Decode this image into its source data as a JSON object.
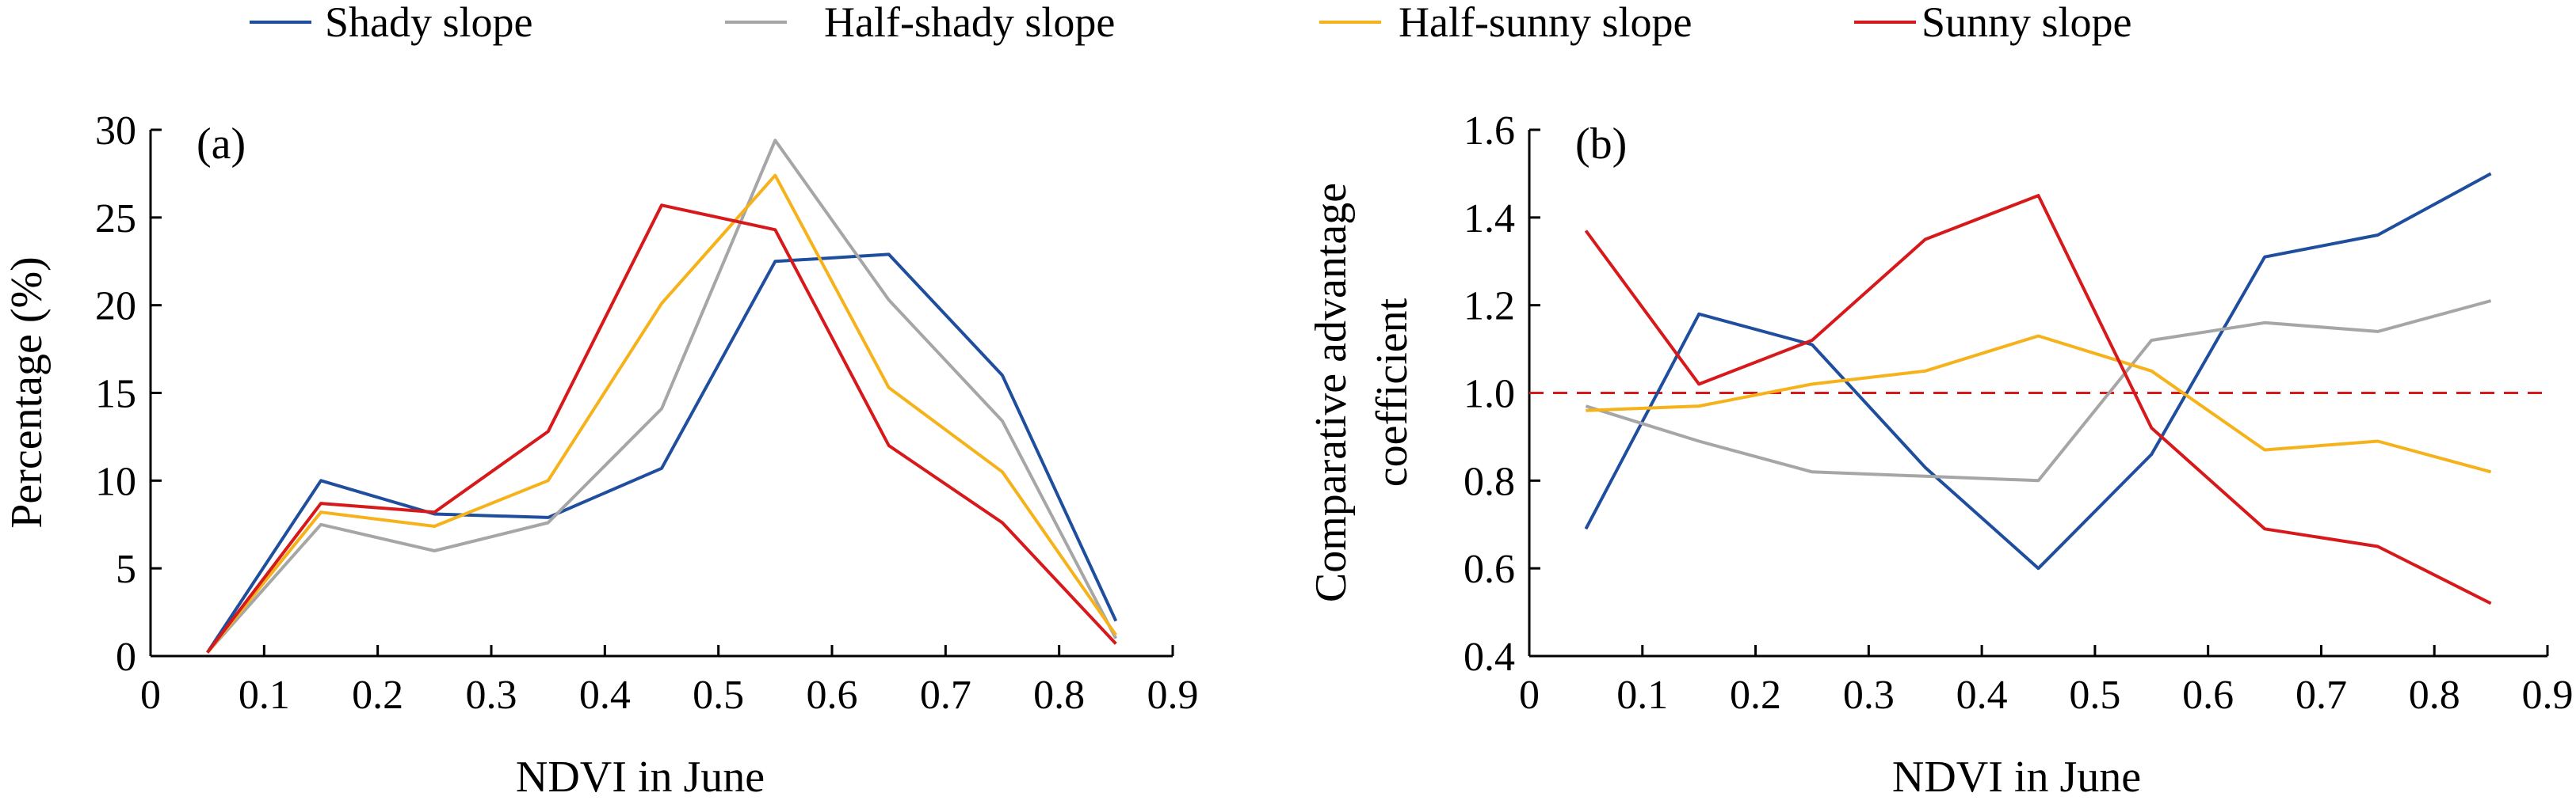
{
  "legend": [
    {
      "name": "Shady slope",
      "color": "#1f4e9e"
    },
    {
      "name": "Half-shady slope",
      "color": "#a6a6a6"
    },
    {
      "name": "Half-sunny slope",
      "color": "#f5b21a"
    },
    {
      "name": "Sunny slope",
      "color": "#d7191c"
    }
  ],
  "chart_data": [
    {
      "type": "line",
      "panel_label": "(a)",
      "xlabel": "NDVI in June",
      "ylabel": "Percentage (%)",
      "xlim": [
        0,
        0.9
      ],
      "ylim": [
        0,
        30
      ],
      "xticks": [
        "0",
        "0.1",
        "0.2",
        "0.3",
        "0.4",
        "0.5",
        "0.6",
        "0.7",
        "0.8",
        "0.9"
      ],
      "yticks": [
        "0",
        "5",
        "10",
        "15",
        "20",
        "25",
        "30"
      ],
      "x": [
        0.05,
        0.15,
        0.25,
        0.35,
        0.45,
        0.55,
        0.65,
        0.75,
        0.85
      ],
      "series": [
        {
          "name": "Shady slope",
          "color": "#1f4e9e",
          "values": [
            0.2,
            10.0,
            8.1,
            7.9,
            10.7,
            22.5,
            22.9,
            16.0,
            2.0
          ]
        },
        {
          "name": "Half-shady slope",
          "color": "#a6a6a6",
          "values": [
            0.2,
            7.5,
            6.0,
            7.6,
            14.1,
            29.4,
            20.3,
            13.4,
            1.0
          ]
        },
        {
          "name": "Half-sunny slope",
          "color": "#f5b21a",
          "values": [
            0.2,
            8.2,
            7.4,
            10.0,
            20.1,
            27.4,
            15.3,
            10.5,
            1.2
          ]
        },
        {
          "name": "Sunny slope",
          "color": "#d7191c",
          "values": [
            0.2,
            8.7,
            8.2,
            12.8,
            25.7,
            24.3,
            12.0,
            7.6,
            0.7
          ]
        }
      ],
      "grid": false
    },
    {
      "type": "line",
      "panel_label": "(b)",
      "xlabel": "NDVI in June",
      "ylabel_lines": [
        "Comparative advantage",
        "coefficient"
      ],
      "xlim": [
        0,
        0.9
      ],
      "ylim": [
        0.4,
        1.6
      ],
      "xticks": [
        "0",
        "0.1",
        "0.2",
        "0.3",
        "0.4",
        "0.5",
        "0.6",
        "0.7",
        "0.8",
        "0.9"
      ],
      "yticks": [
        "0.4",
        "0.6",
        "0.8",
        "1.0",
        "1.2",
        "1.4",
        "1.6"
      ],
      "x": [
        0.05,
        0.15,
        0.25,
        0.35,
        0.45,
        0.55,
        0.65,
        0.75,
        0.85
      ],
      "series": [
        {
          "name": "Shady slope",
          "color": "#1f4e9e",
          "values": [
            0.69,
            1.18,
            1.11,
            0.83,
            0.6,
            0.86,
            1.31,
            1.36,
            1.5
          ]
        },
        {
          "name": "Half-shady slope",
          "color": "#a6a6a6",
          "values": [
            0.97,
            0.89,
            0.82,
            0.81,
            0.8,
            1.12,
            1.16,
            1.14,
            1.21
          ]
        },
        {
          "name": "Half-sunny slope",
          "color": "#f5b21a",
          "values": [
            0.96,
            0.97,
            1.02,
            1.05,
            1.13,
            1.05,
            0.87,
            0.89,
            0.82
          ]
        },
        {
          "name": "Sunny slope",
          "color": "#d7191c",
          "values": [
            1.37,
            1.02,
            1.12,
            1.35,
            1.45,
            0.92,
            0.69,
            0.65,
            0.52
          ]
        }
      ],
      "reference_line": {
        "y": 1.0,
        "style": "dashed",
        "color": "#d7191c"
      },
      "grid": false
    }
  ]
}
